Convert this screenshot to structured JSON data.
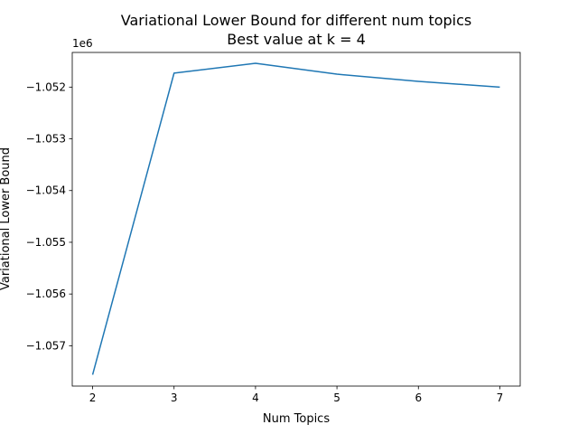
{
  "chart_data": {
    "type": "line",
    "title_line1": "Variational Lower Bound for different num topics",
    "title_line2": "Best value at k = 4",
    "xlabel": "Num Topics",
    "ylabel": "Variational Lower Bound",
    "y_offset_label": "1e6",
    "x": [
      2,
      3,
      4,
      5,
      6,
      7
    ],
    "series": [
      {
        "values": [
          -1057560,
          -1051730,
          -1051540,
          -1051750,
          -1051890,
          -1052000
        ],
        "color": "#1f77b4"
      }
    ],
    "xlim": [
      1.75,
      7.25
    ],
    "ylim": [
      -1057780,
      -1051330
    ],
    "x_ticks": [
      2,
      3,
      4,
      5,
      6,
      7
    ],
    "x_tick_labels": [
      "2",
      "3",
      "4",
      "5",
      "6",
      "7"
    ],
    "y_ticks": [
      -1057000,
      -1056000,
      -1055000,
      -1054000,
      -1053000,
      -1052000
    ],
    "y_tick_labels": [
      "−1.057",
      "−1.056",
      "−1.055",
      "−1.054",
      "−1.053",
      "−1.052"
    ],
    "grid": false,
    "legend": "none"
  }
}
